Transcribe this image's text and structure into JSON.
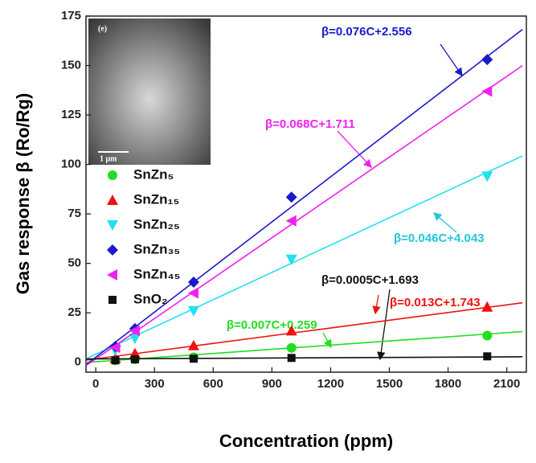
{
  "chart_data": {
    "type": "scatter",
    "xlabel": "Concentration   (ppm)",
    "ylabel": "Gas response β  (Ro/Rg)",
    "xlim": [
      -50,
      2200
    ],
    "ylim": [
      -5,
      175
    ],
    "xticks": [
      0,
      300,
      600,
      900,
      1200,
      1500,
      1800,
      2100
    ],
    "yticks": [
      0,
      25,
      50,
      75,
      100,
      125,
      150,
      175
    ],
    "inset": {
      "panel": "(e)",
      "scale": "1 μm"
    },
    "series": [
      {
        "name": "SnZn₅",
        "color": "#22dd22",
        "marker": "circle",
        "x": [
          100,
          200,
          500,
          1000,
          2000
        ],
        "values": [
          1,
          1.5,
          2.5,
          7.3,
          13.5
        ],
        "fit": {
          "slope": 0.007,
          "intercept": 0.259
        },
        "label": "β=0.007C+0.259"
      },
      {
        "name": "SnZn₁₅",
        "color": "#ee1111",
        "marker": "triangle-up",
        "x": [
          100,
          200,
          500,
          1000,
          2000
        ],
        "values": [
          2,
          4.5,
          8.5,
          16,
          28
        ],
        "fit": {
          "slope": 0.013,
          "intercept": 1.743
        },
        "label": "β=0.013C+1.743"
      },
      {
        "name": "SnZn₂₅",
        "color": "#22e0f0",
        "marker": "triangle-down",
        "x": [
          100,
          200,
          500,
          1000,
          2000
        ],
        "values": [
          6,
          12,
          26,
          52,
          94
        ],
        "fit": {
          "slope": 0.046,
          "intercept": 4.043
        },
        "label": "β=0.046C+4.043"
      },
      {
        "name": "SnZn₃₅",
        "color": "#1a1acc",
        "marker": "diamond",
        "x": [
          100,
          200,
          500,
          1000,
          2000
        ],
        "values": [
          8,
          17,
          40.5,
          83.5,
          153
        ],
        "fit": {
          "slope": 0.076,
          "intercept": 2.556
        },
        "label": "β=0.076C+2.556"
      },
      {
        "name": "SnZn₄₅",
        "color": "#ee22ee",
        "marker": "triangle-left",
        "x": [
          100,
          200,
          500,
          1000,
          2000
        ],
        "values": [
          7.5,
          16,
          35,
          71.5,
          137
        ],
        "fit": {
          "slope": 0.068,
          "intercept": 1.711
        },
        "label": "β=0.068C+1.711"
      },
      {
        "name": "SnO₂",
        "color": "#111111",
        "marker": "square",
        "x": [
          100,
          200,
          500,
          1000,
          2000
        ],
        "values": [
          1,
          1.5,
          1.8,
          2.2,
          3
        ],
        "fit": {
          "slope": 0.0005,
          "intercept": 1.693
        },
        "label": "β=0.0005C+1.693"
      }
    ]
  }
}
